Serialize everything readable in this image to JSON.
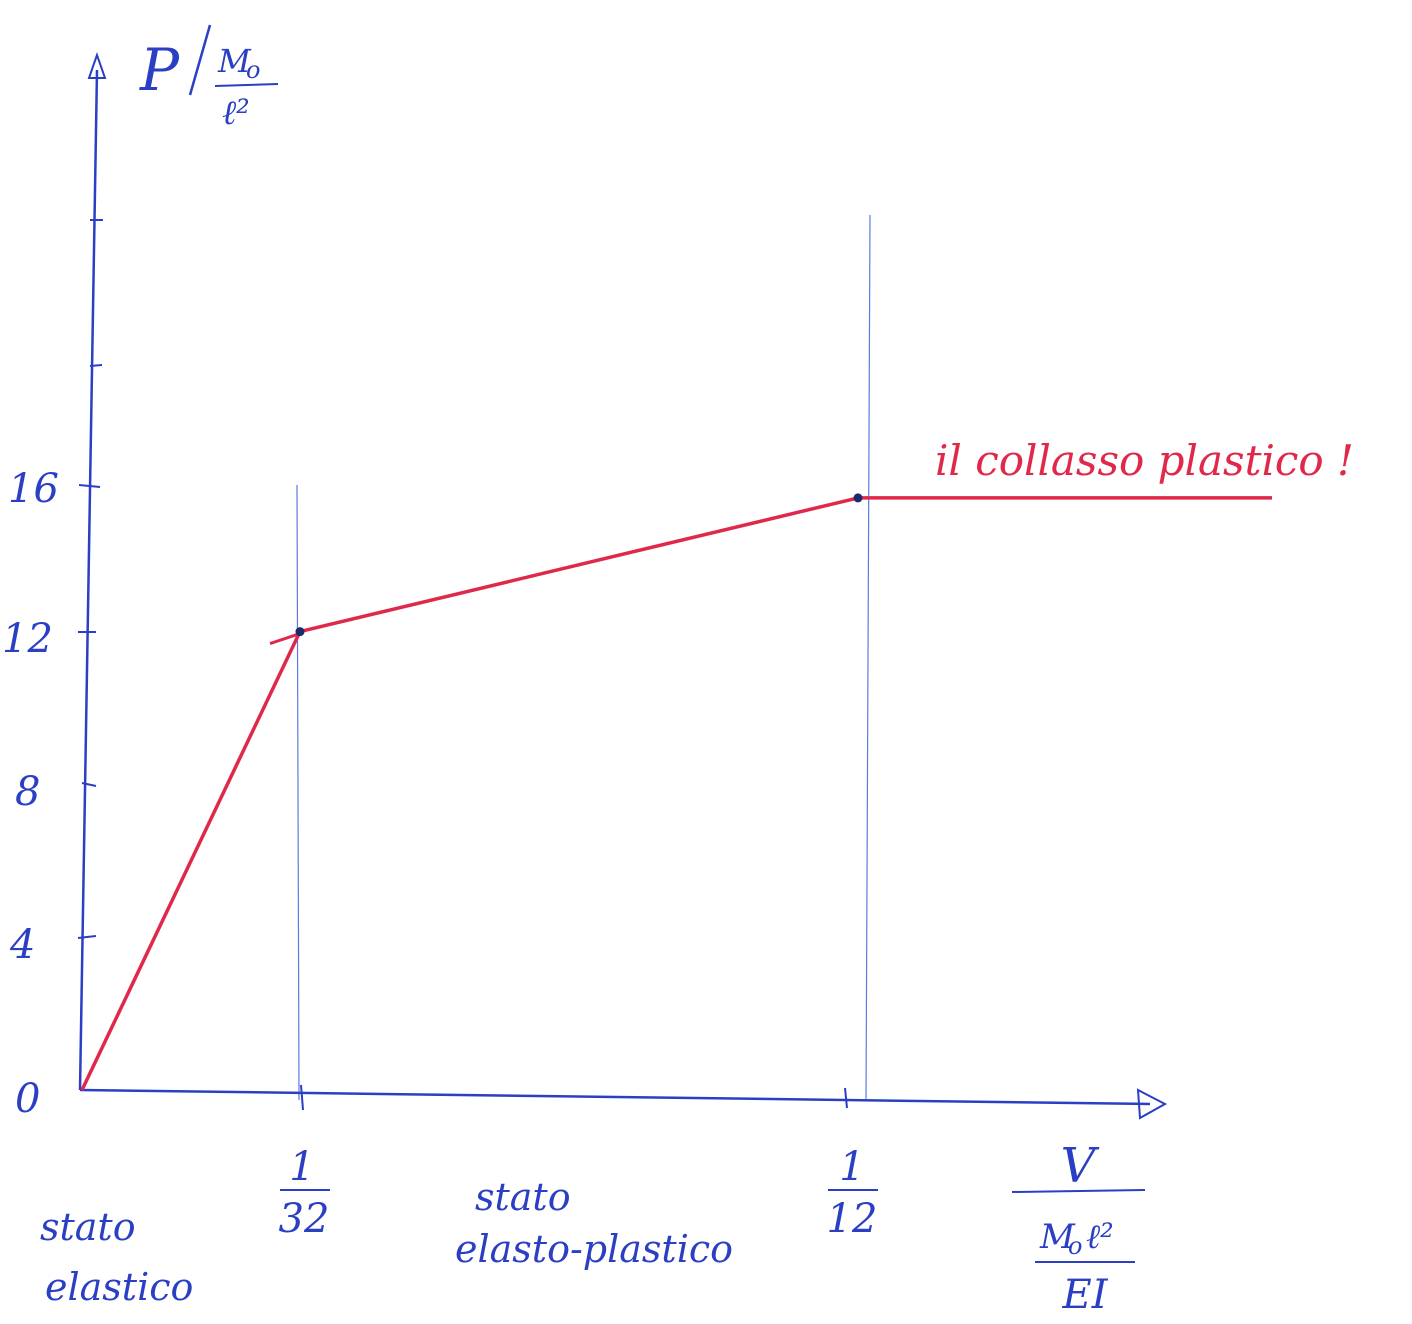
{
  "colors": {
    "axis": "#2a3fc4",
    "guide": "#5a7ae0",
    "curve": "#e0294a",
    "point": "#1a2a6a"
  },
  "chart_data": {
    "type": "line",
    "series": [
      {
        "points": [
          {
            "x": 0,
            "y": 0
          },
          {
            "x": "1/32",
            "y": 12
          },
          {
            "x": "1/12",
            "y": 15.5
          },
          {
            "x": "1/12 (plateau)",
            "y": 15.5
          }
        ]
      }
    ],
    "y_ticks": [
      {
        "label": "0",
        "value": 0
      },
      {
        "label": "4",
        "value": 4
      },
      {
        "label": "8",
        "value": 8
      },
      {
        "label": "12",
        "value": 12
      },
      {
        "label": "16",
        "value": 16
      }
    ],
    "x_ticks": [
      {
        "num": "1",
        "den": "32",
        "value": 0.03125
      },
      {
        "num": "1",
        "den": "12",
        "value": 0.0833
      }
    ],
    "ylim": [
      0,
      24
    ],
    "ylabel": {
      "main": "P",
      "num": "M",
      "num_sub": "o",
      "den": "ℓ²"
    },
    "xlabel": {
      "top": "V",
      "mid_num": "M",
      "mid_sub": "o",
      "mid_rest": "ℓ²",
      "bottom": "EI"
    },
    "annotations": {
      "elastic_1": "stato",
      "elastic_2": "elastico",
      "elastoplastic_1": "stato",
      "elastoplastic_2": "elasto-plastico",
      "collapse": "il collasso plastico !"
    }
  }
}
